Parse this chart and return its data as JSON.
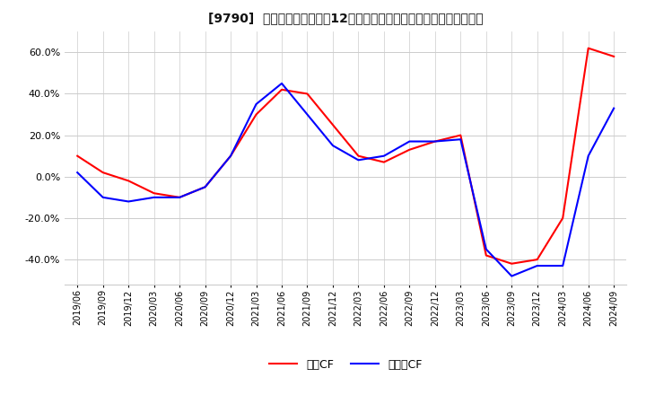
{
  "title": "[9790]  キャッシュフローの12か月移動合計の対前年同期増減率の推移",
  "ylim": [
    -0.52,
    0.7
  ],
  "yticks": [
    -0.4,
    -0.2,
    0.0,
    0.2,
    0.4,
    0.6
  ],
  "ytick_labels": [
    "-40.0%",
    "-20.0%",
    "0.0%",
    "20.0%",
    "40.0%",
    "60.0%"
  ],
  "legend_labels": [
    "営業CF",
    "フリーCF"
  ],
  "line_colors": [
    "#ff0000",
    "#0000ff"
  ],
  "background_color": "#ffffff",
  "grid_color": "#cccccc",
  "x_labels": [
    "2019/06",
    "2019/09",
    "2019/12",
    "2020/03",
    "2020/06",
    "2020/09",
    "2020/12",
    "2021/03",
    "2021/06",
    "2021/09",
    "2021/12",
    "2022/03",
    "2022/06",
    "2022/09",
    "2022/12",
    "2023/03",
    "2023/06",
    "2023/09",
    "2023/12",
    "2024/03",
    "2024/06",
    "2024/09"
  ],
  "series_operating": [
    0.1,
    0.02,
    -0.02,
    -0.08,
    -0.1,
    -0.05,
    0.1,
    0.3,
    0.42,
    0.4,
    0.25,
    0.1,
    0.07,
    0.13,
    0.17,
    0.2,
    -0.38,
    -0.42,
    -0.4,
    -0.2,
    0.62,
    0.58
  ],
  "series_free": [
    0.02,
    -0.1,
    -0.12,
    -0.1,
    -0.1,
    -0.05,
    0.1,
    0.35,
    0.45,
    0.3,
    0.15,
    0.08,
    0.1,
    0.17,
    0.17,
    0.18,
    -0.35,
    -0.48,
    -0.43,
    -0.43,
    0.1,
    0.33
  ]
}
